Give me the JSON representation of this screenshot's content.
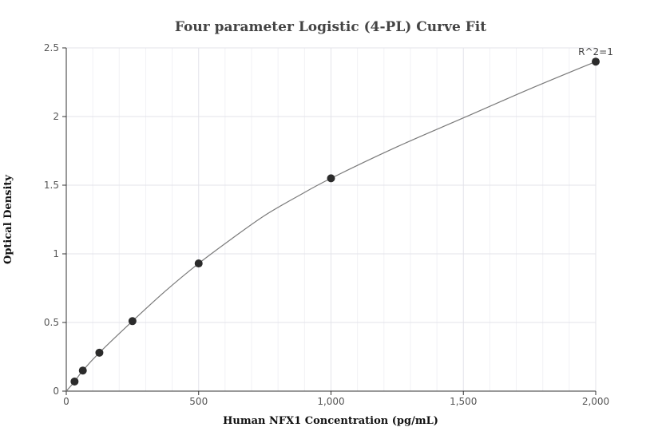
{
  "chart_data": {
    "type": "scatter",
    "title": "Four parameter Logistic (4-PL) Curve Fit",
    "xlabel": "Human NFX1 Concentration (pg/mL)",
    "ylabel": "Optical Density",
    "xlim": [
      0,
      2000
    ],
    "ylim": [
      0,
      2.5
    ],
    "x_ticks": [
      0,
      500,
      1000,
      1500,
      2000
    ],
    "x_tick_labels": [
      "0",
      "500",
      "1,000",
      "1,500",
      "2,000"
    ],
    "y_ticks": [
      0,
      0.5,
      1,
      1.5,
      2,
      2.5
    ],
    "y_tick_labels": [
      "0",
      "0.5",
      "1",
      "1.5",
      "2",
      "2.5"
    ],
    "grid": true,
    "series": [
      {
        "x": [
          31.25,
          62.5,
          125,
          250,
          500,
          1000,
          2000
        ],
        "y": [
          0.07,
          0.15,
          0.28,
          0.51,
          0.93,
          1.55,
          2.4
        ]
      }
    ],
    "fit_curve": {
      "type": "4PL",
      "points": [
        [
          0,
          0.0
        ],
        [
          31.25,
          0.07
        ],
        [
          62.5,
          0.15
        ],
        [
          125,
          0.28
        ],
        [
          250,
          0.51
        ],
        [
          375,
          0.73
        ],
        [
          500,
          0.93
        ],
        [
          625,
          1.11
        ],
        [
          750,
          1.28
        ],
        [
          875,
          1.42
        ],
        [
          1000,
          1.55
        ],
        [
          1250,
          1.78
        ],
        [
          1500,
          1.99
        ],
        [
          1750,
          2.2
        ],
        [
          2000,
          2.4
        ]
      ]
    },
    "annotation": "R^2=1",
    "colors": {
      "points": "#2b2b2b",
      "curve": "#7a7a7a",
      "grid": "#e3e3ea"
    }
  }
}
